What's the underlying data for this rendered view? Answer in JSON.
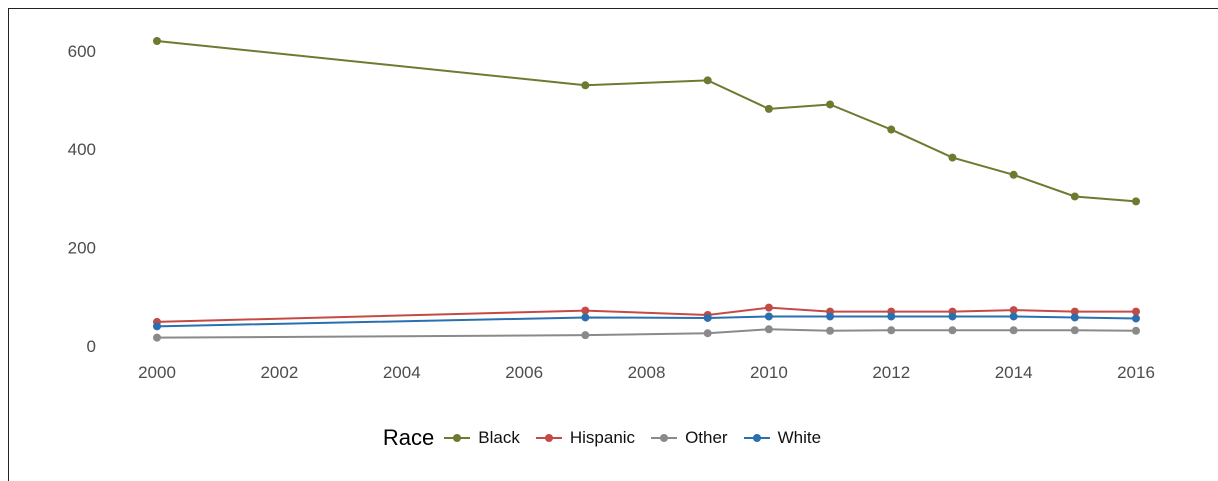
{
  "chart_data": {
    "type": "line",
    "title": "",
    "xlabel": "",
    "ylabel": "",
    "x": [
      2000,
      2007,
      2009,
      2010,
      2011,
      2012,
      2013,
      2014,
      2015,
      2016
    ],
    "x_ticks": [
      "2000",
      "2002",
      "2004",
      "2006",
      "2008",
      "2010",
      "2012",
      "2014",
      "2016"
    ],
    "y_ticks": [
      "0",
      "200",
      "400",
      "600"
    ],
    "xlim": [
      2000,
      2016
    ],
    "ylim": [
      0,
      620
    ],
    "grid": false,
    "legend_position": "bottom",
    "legend_title": "Race",
    "series": [
      {
        "name": "Black",
        "color": "#6b7b2f",
        "values": [
          620,
          530,
          540,
          482,
          491,
          440,
          383,
          348,
          304,
          294
        ]
      },
      {
        "name": "Hispanic",
        "color": "#c44b45",
        "values": [
          49,
          72,
          63,
          78,
          70,
          70,
          70,
          73,
          70,
          70
        ]
      },
      {
        "name": "Other",
        "color": "#8a8a8a",
        "values": [
          17,
          22,
          26,
          34,
          31,
          32,
          32,
          32,
          32,
          31
        ]
      },
      {
        "name": "White",
        "color": "#2a6fb0",
        "values": [
          40,
          58,
          57,
          60,
          60,
          60,
          60,
          60,
          58,
          56
        ]
      }
    ]
  }
}
